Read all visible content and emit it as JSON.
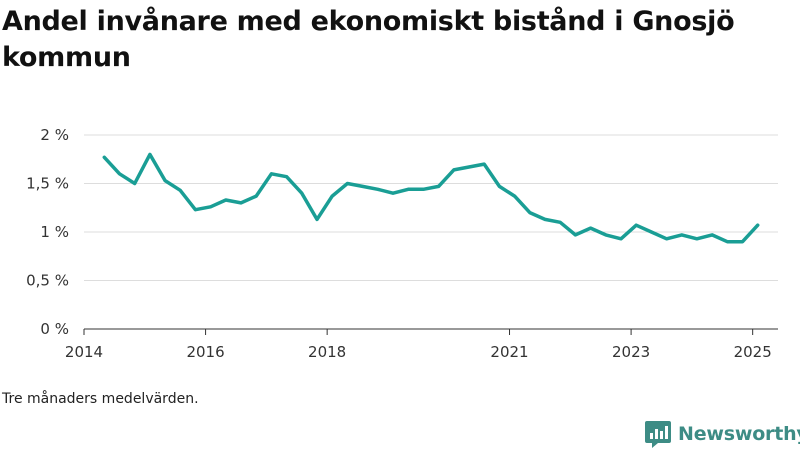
{
  "title": "Andel invånare med ekonomiskt bistånd i Gnosjö kommun",
  "note": "Tre månaders medelvärden.",
  "brand": {
    "name": "Newsworthy"
  },
  "colors": {
    "line": "#1a9e95",
    "grid": "#dddddd",
    "axis": "#333333",
    "brand": "#3d8c85"
  },
  "chart_data": {
    "type": "line",
    "title": "Andel invånare med ekonomiskt bistånd i Gnosjö kommun",
    "xlabel": "",
    "ylabel": "",
    "ylim": [
      0,
      2
    ],
    "xlim": [
      "2014-01",
      "2025-06"
    ],
    "yticks": [
      {
        "value": 0,
        "label": "0 %"
      },
      {
        "value": 0.5,
        "label": "0,5 %"
      },
      {
        "value": 1,
        "label": "1 %"
      },
      {
        "value": 1.5,
        "label": "1,5 %"
      },
      {
        "value": 2,
        "label": "2 %"
      }
    ],
    "xticks": [
      {
        "value": "2014-01",
        "label": "2014"
      },
      {
        "value": "2016-01",
        "label": "2016"
      },
      {
        "value": "2018-01",
        "label": "2018"
      },
      {
        "value": "2021-01",
        "label": "2021"
      },
      {
        "value": "2023-01",
        "label": "2023"
      },
      {
        "value": "2025-01",
        "label": "2025"
      }
    ],
    "grid": true,
    "series": [
      {
        "x": [
          "2014-05",
          "2014-08",
          "2014-11",
          "2015-02",
          "2015-05",
          "2015-08",
          "2015-11",
          "2016-02",
          "2016-05",
          "2016-08",
          "2016-11",
          "2017-02",
          "2017-05",
          "2017-08",
          "2017-11",
          "2018-02",
          "2018-05",
          "2018-08",
          "2018-11",
          "2019-02",
          "2019-05",
          "2019-08",
          "2019-11",
          "2020-02",
          "2020-05",
          "2020-08",
          "2020-11",
          "2021-02",
          "2021-05",
          "2021-08",
          "2021-11",
          "2022-02",
          "2022-05",
          "2022-08",
          "2022-11",
          "2023-02",
          "2023-05",
          "2023-08",
          "2023-11",
          "2024-02",
          "2024-05",
          "2024-08",
          "2024-11",
          "2025-02"
        ],
        "values": [
          1.77,
          1.6,
          1.5,
          1.8,
          1.53,
          1.43,
          1.23,
          1.26,
          1.33,
          1.3,
          1.37,
          1.6,
          1.57,
          1.4,
          1.13,
          1.37,
          1.5,
          1.47,
          1.44,
          1.4,
          1.44,
          1.44,
          1.47,
          1.64,
          1.67,
          1.7,
          1.47,
          1.37,
          1.2,
          1.13,
          1.1,
          0.97,
          1.04,
          0.97,
          0.93,
          1.07,
          1.0,
          0.93,
          0.97,
          0.93,
          0.97,
          0.9,
          0.9,
          1.07
        ]
      }
    ]
  }
}
